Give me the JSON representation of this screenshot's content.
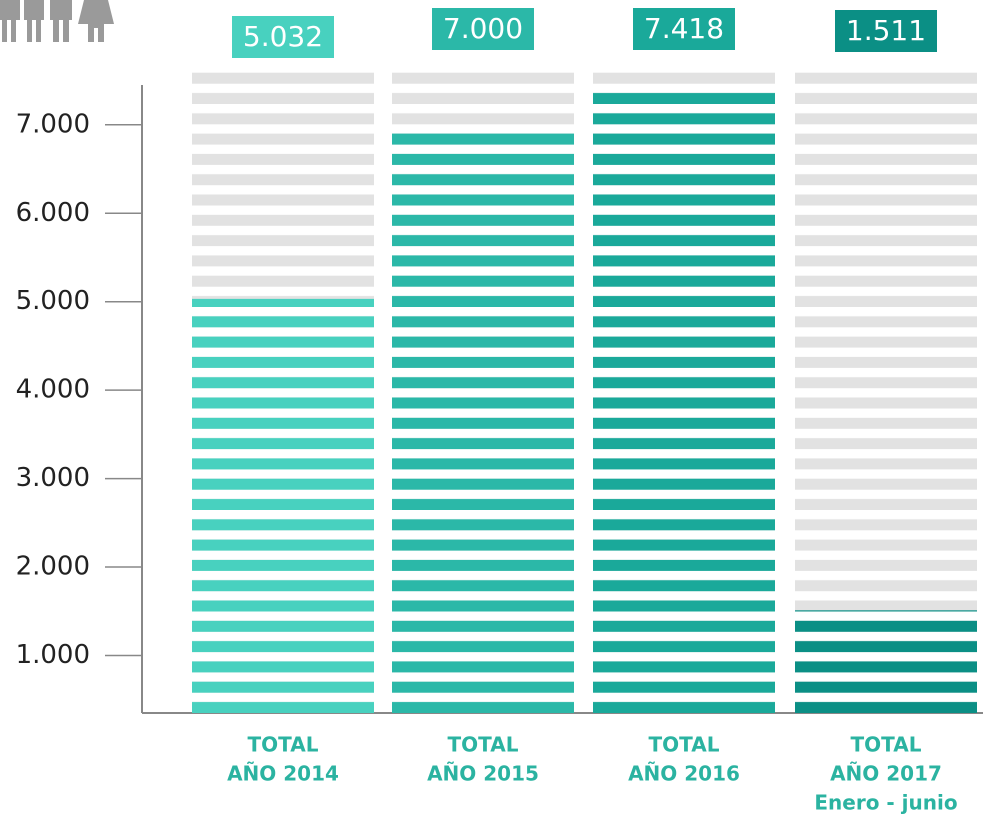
{
  "chart_data": {
    "type": "bar",
    "categories": [
      [
        "TOTAL",
        "AÑO 2014"
      ],
      [
        "TOTAL",
        "AÑO 2015"
      ],
      [
        "TOTAL",
        "AÑO 2016"
      ],
      [
        "TOTAL",
        "AÑO 2017",
        "Enero - junio"
      ]
    ],
    "values": [
      5032,
      7000,
      7418,
      1511
    ],
    "value_labels": [
      "5.032",
      "7.000",
      "7.418",
      "1.511"
    ],
    "colors": [
      "#48d1bf",
      "#2bb8a8",
      "#1aa99a",
      "#0b8f85"
    ],
    "ylim": [
      350,
      7450
    ],
    "yticks": [
      {
        "value": 1000,
        "label": "1.000"
      },
      {
        "value": 2000,
        "label": "2.000"
      },
      {
        "value": 3000,
        "label": "3.000"
      },
      {
        "value": 4000,
        "label": "4.000"
      },
      {
        "value": 5000,
        "label": "5.000"
      },
      {
        "value": 6000,
        "label": "6.000"
      },
      {
        "value": 7000,
        "label": "7.000"
      }
    ],
    "grid": false
  }
}
